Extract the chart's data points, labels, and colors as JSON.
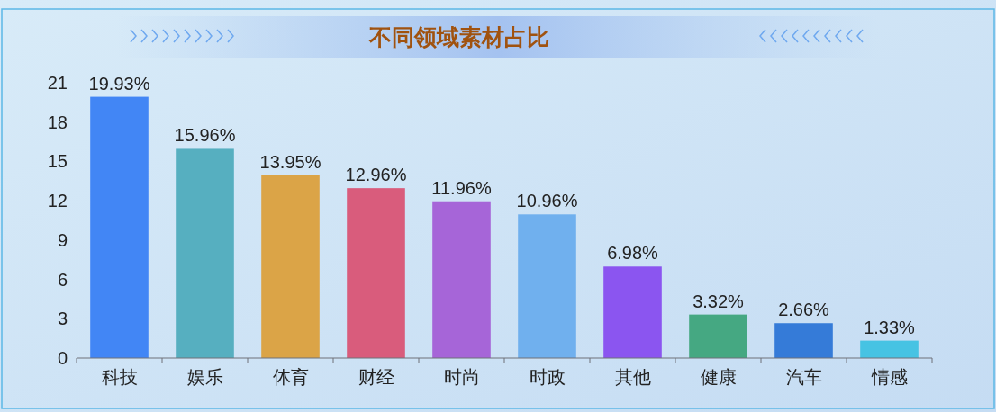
{
  "chart_data": {
    "type": "bar",
    "title": "不同领域素材占比",
    "categories": [
      "科技",
      "娱乐",
      "体育",
      "财经",
      "时尚",
      "时政",
      "其他",
      "健康",
      "汽车",
      "情感"
    ],
    "values": [
      19.93,
      15.96,
      13.95,
      12.96,
      11.96,
      10.96,
      6.98,
      3.32,
      2.66,
      1.33
    ],
    "colors": [
      "#4286f5",
      "#56afc0",
      "#dba447",
      "#d95c7c",
      "#a665d8",
      "#70b0ee",
      "#8b55f0",
      "#45a882",
      "#357bd8",
      "#46c3e3"
    ],
    "value_labels": [
      "19.93%",
      "15.96%",
      "13.95%",
      "12.96%",
      "11.96%",
      "10.96%",
      "6.98%",
      "3.32%",
      "2.66%",
      "1.33%"
    ],
    "ylim": [
      0,
      21
    ],
    "yticks": [
      0,
      3,
      6,
      9,
      12,
      15,
      18,
      21
    ],
    "grid": false
  }
}
